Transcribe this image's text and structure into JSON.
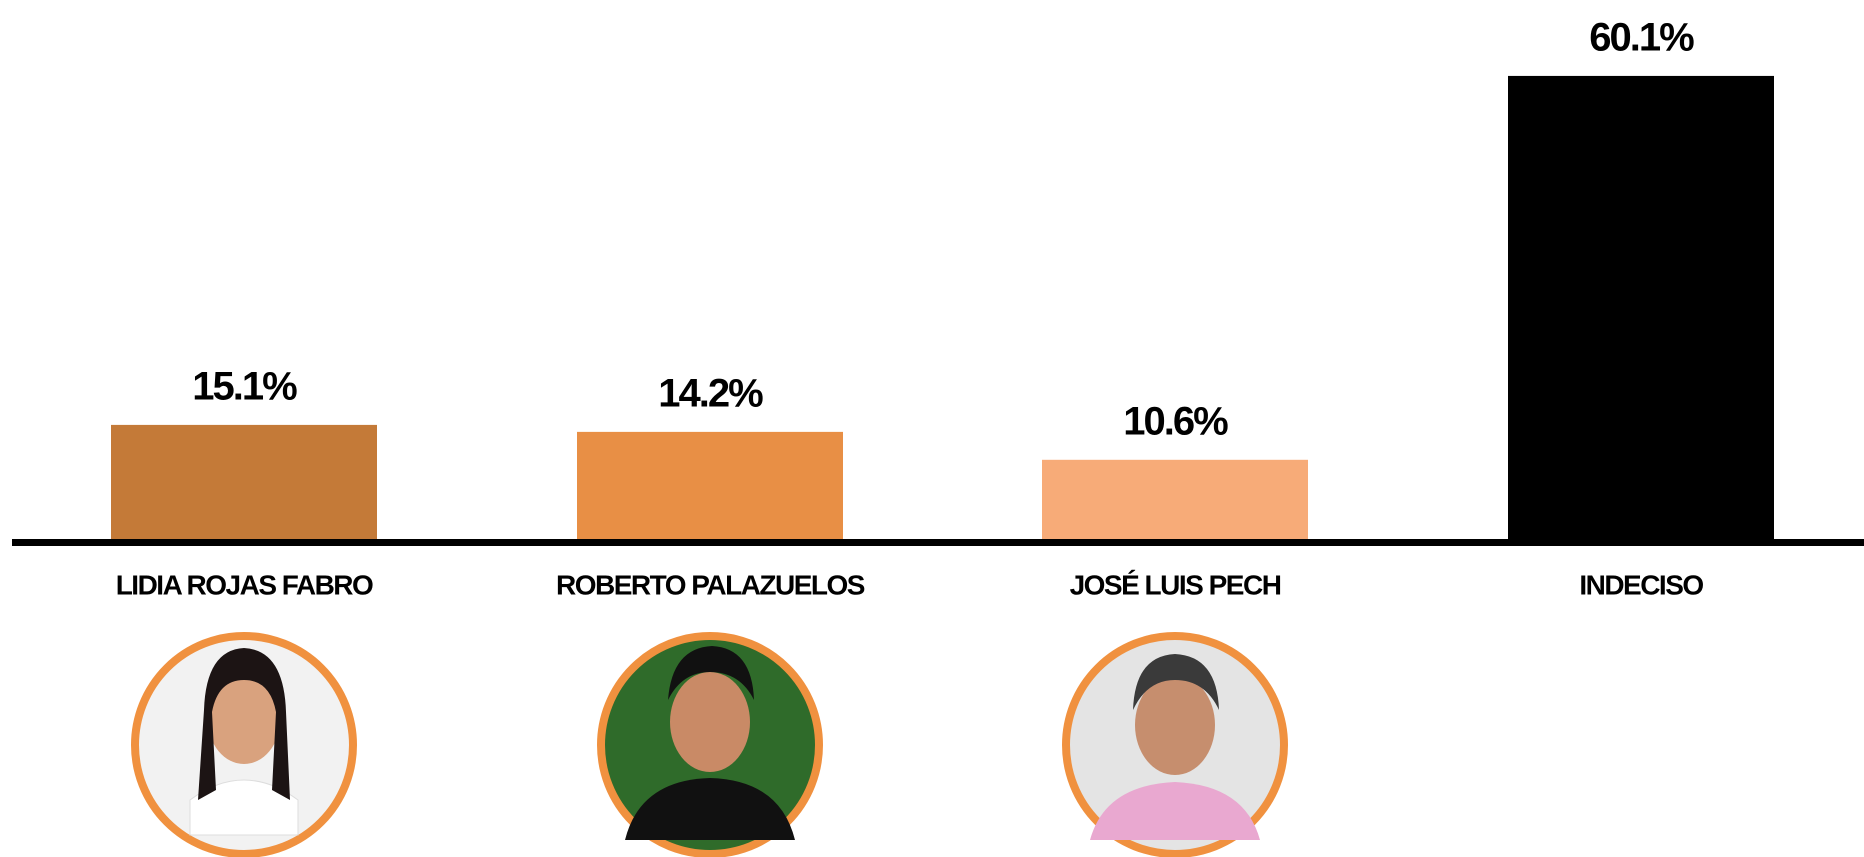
{
  "chart_data": {
    "type": "bar",
    "categories": [
      "LIDIA ROJAS FABRO",
      "ROBERTO PALAZUELOS",
      "JOSÉ LUIS PECH",
      "INDECISO"
    ],
    "values": [
      15.1,
      14.2,
      10.6,
      60.1
    ],
    "value_labels": [
      "15.1%",
      "14.2%",
      "10.6%",
      "60.1%"
    ],
    "colors": [
      "#c47a38",
      "#e88f45",
      "#f7ab78",
      "#000000"
    ]
  }
}
